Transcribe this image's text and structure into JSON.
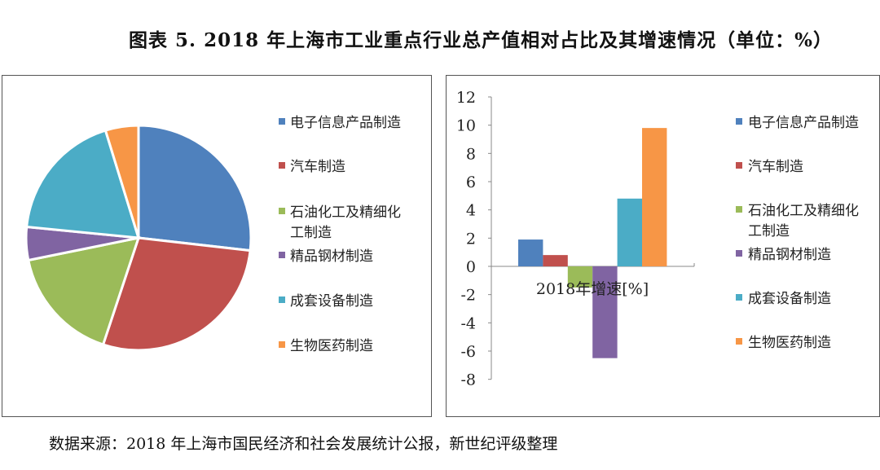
{
  "title": "图表 5. 2018 年上海市工业重点行业总产值相对占比及其增速情况（单位：%）",
  "source": "数据来源：2018 年上海市国民经济和社会发展统计公报，新世纪评级整理",
  "chart_data": [
    {
      "type": "pie",
      "title": "",
      "legend_position": "right",
      "categories": [
        "电子信息产品制造",
        "汽车制造",
        "石油化工及精细化工制造",
        "精品钢材制造",
        "成套设备制造",
        "生物医药制造"
      ],
      "legend_lines": [
        [
          "电子信息产品制造"
        ],
        [
          "汽车制造"
        ],
        [
          "石油化工及精细化",
          "工制造"
        ],
        [
          "精品钢材制造"
        ],
        [
          "成套设备制造"
        ],
        [
          "生物医药制造"
        ]
      ],
      "values": [
        27.1,
        28.6,
        16.9,
        4.8,
        18.9,
        4.8
      ],
      "colors": [
        "#4F81BD",
        "#C0504D",
        "#9BBB59",
        "#8064A2",
        "#4BACC6",
        "#F79646"
      ]
    },
    {
      "type": "bar",
      "title": "",
      "xlabel": "2018年增速[%]",
      "ylabel": "",
      "categories": [
        "2018年增速[%]"
      ],
      "series": [
        {
          "name": "电子信息产品制造",
          "values": [
            1.9
          ]
        },
        {
          "name": "汽车制造",
          "values": [
            0.8
          ]
        },
        {
          "name": "石油化工及精细化工制造",
          "values": [
            -1.5
          ]
        },
        {
          "name": "精品钢材制造",
          "values": [
            -6.5
          ]
        },
        {
          "name": "成套设备制造",
          "values": [
            4.8
          ]
        },
        {
          "name": "生物医药制造",
          "values": [
            9.8
          ]
        }
      ],
      "legend_lines": [
        [
          "电子信息产品制造"
        ],
        [
          "汽车制造"
        ],
        [
          "石油化工及精细化",
          "工制造"
        ],
        [
          "精品钢材制造"
        ],
        [
          "成套设备制造"
        ],
        [
          "生物医药制造"
        ]
      ],
      "ylim": [
        -8,
        12
      ],
      "yticks": [
        "-8",
        "-6",
        "-4",
        "-2",
        "0",
        "2",
        "4",
        "6",
        "8",
        "10",
        "12"
      ],
      "grid": false,
      "legend_position": "right",
      "colors": [
        "#4F81BD",
        "#C0504D",
        "#9BBB59",
        "#8064A2",
        "#4BACC6",
        "#F79646"
      ]
    }
  ]
}
